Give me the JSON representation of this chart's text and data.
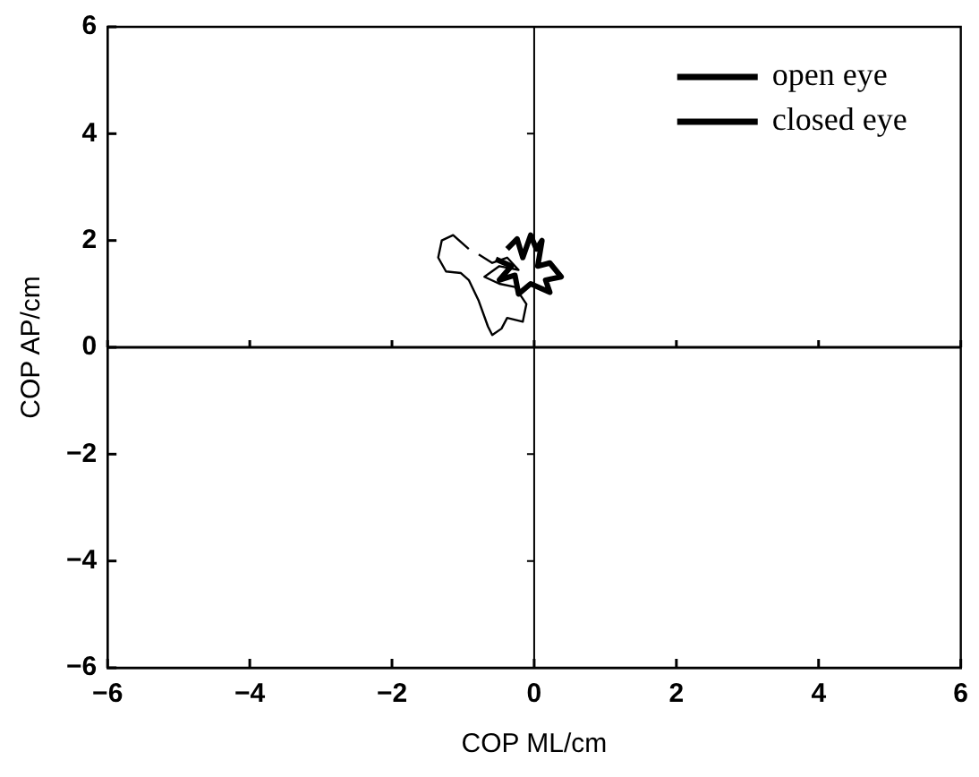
{
  "chart_data": {
    "type": "line",
    "xlabel": "COP ML/cm",
    "ylabel": "COP AP/cm",
    "xlim": [
      -6,
      6
    ],
    "ylim": [
      -6,
      6
    ],
    "xticks": [
      -6,
      -4,
      -2,
      0,
      2,
      4,
      6
    ],
    "yticks": [
      -6,
      -4,
      -2,
      0,
      2,
      4,
      6
    ],
    "grid": false,
    "legend": "top right",
    "marker": "none",
    "ref_lines": [
      {
        "axis": "x",
        "value": 0,
        "color": "#000000"
      },
      {
        "axis": "y",
        "value": 0,
        "color": "#000000"
      }
    ],
    "series": [
      {
        "name": "open eye",
        "color": "#000000",
        "x": [
          -0.38,
          -0.24,
          -0.16,
          -0.05,
          0.03,
          0.11,
          0.05,
          0.22,
          0.38,
          0.16,
          0.22,
          -0.05,
          -0.22,
          -0.27,
          -0.49,
          -0.32,
          -0.54
        ],
        "values": [
          1.84,
          2.03,
          1.68,
          2.1,
          1.84,
          2.0,
          1.52,
          1.58,
          1.32,
          1.26,
          1.03,
          1.19,
          1.0,
          1.35,
          1.26,
          1.52,
          1.65
        ]
      },
      {
        "name": "closed eye",
        "color": "#000000",
        "x": [
          -0.92,
          -1.14,
          -1.3,
          -1.35,
          -1.24,
          -1.03,
          -0.92,
          -0.78,
          -0.65,
          -0.59,
          -0.46,
          -0.38,
          -0.16,
          -0.11,
          -0.27,
          -0.49,
          -0.7,
          -0.49,
          -0.22,
          -0.38,
          -0.59,
          -0.78
        ],
        "values": [
          1.84,
          2.1,
          2.0,
          1.68,
          1.42,
          1.39,
          1.26,
          0.87,
          0.39,
          0.23,
          0.35,
          0.55,
          0.48,
          0.81,
          1.13,
          1.19,
          1.32,
          1.52,
          1.45,
          1.68,
          1.58,
          1.74
        ]
      }
    ]
  }
}
